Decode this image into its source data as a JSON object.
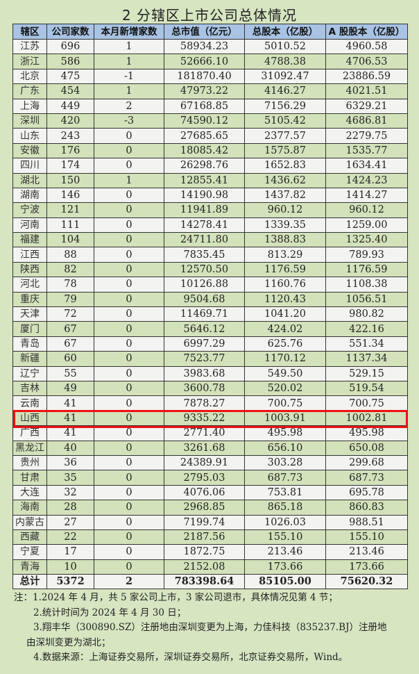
{
  "title": "2  分辖区上市公司总体情况",
  "table": {
    "headers": [
      "辖区",
      "公司家数",
      "本月新增家数",
      "总市值（亿元）",
      "总股本（亿股）",
      "A 股股本（亿股）"
    ],
    "rows": [
      [
        "江苏",
        "696",
        "1",
        "58934.23",
        "5010.52",
        "4960.58"
      ],
      [
        "浙江",
        "586",
        "1",
        "52666.10",
        "4788.38",
        "4706.53"
      ],
      [
        "北京",
        "475",
        "-1",
        "181870.40",
        "31092.47",
        "23886.59"
      ],
      [
        "广东",
        "454",
        "1",
        "47973.22",
        "4146.27",
        "4021.51"
      ],
      [
        "上海",
        "449",
        "2",
        "67168.85",
        "7156.29",
        "6329.21"
      ],
      [
        "深圳",
        "420",
        "-3",
        "74590.12",
        "5105.42",
        "4686.81"
      ],
      [
        "山东",
        "243",
        "0",
        "27685.65",
        "2377.57",
        "2279.75"
      ],
      [
        "安徽",
        "176",
        "0",
        "18085.42",
        "1575.87",
        "1535.77"
      ],
      [
        "四川",
        "174",
        "0",
        "26298.76",
        "1652.83",
        "1634.41"
      ],
      [
        "湖北",
        "150",
        "1",
        "12855.41",
        "1436.62",
        "1424.23"
      ],
      [
        "湖南",
        "146",
        "0",
        "14190.98",
        "1437.82",
        "1414.27"
      ],
      [
        "宁波",
        "121",
        "0",
        "11941.89",
        "960.12",
        "960.12"
      ],
      [
        "河南",
        "111",
        "0",
        "14278.41",
        "1339.35",
        "1259.00"
      ],
      [
        "福建",
        "104",
        "0",
        "24711.80",
        "1388.83",
        "1325.40"
      ],
      [
        "江西",
        "88",
        "0",
        "7835.45",
        "813.29",
        "789.93"
      ],
      [
        "陕西",
        "82",
        "0",
        "12570.50",
        "1176.59",
        "1176.59"
      ],
      [
        "河北",
        "78",
        "0",
        "10126.88",
        "1160.76",
        "1108.38"
      ],
      [
        "重庆",
        "79",
        "0",
        "9504.68",
        "1120.43",
        "1056.51"
      ],
      [
        "天津",
        "72",
        "0",
        "11469.71",
        "1041.20",
        "980.82"
      ],
      [
        "厦门",
        "67",
        "0",
        "5646.12",
        "424.02",
        "422.16"
      ],
      [
        "青岛",
        "67",
        "0",
        "6997.29",
        "625.76",
        "551.34"
      ],
      [
        "新疆",
        "60",
        "0",
        "7523.77",
        "1170.12",
        "1137.34"
      ],
      [
        "辽宁",
        "55",
        "0",
        "3983.68",
        "549.50",
        "529.15"
      ],
      [
        "吉林",
        "49",
        "0",
        "3600.78",
        "520.02",
        "519.54"
      ],
      [
        "云南",
        "41",
        "0",
        "7878.27",
        "700.75",
        "700.75"
      ],
      [
        "山西",
        "41",
        "0",
        "9335.22",
        "1003.91",
        "1002.81"
      ],
      [
        "广西",
        "41",
        "0",
        "2771.40",
        "495.98",
        "495.98"
      ],
      [
        "黑龙江",
        "40",
        "0",
        "3261.68",
        "656.10",
        "650.08"
      ],
      [
        "贵州",
        "36",
        "0",
        "24389.91",
        "303.28",
        "299.68"
      ],
      [
        "甘肃",
        "35",
        "0",
        "2795.03",
        "687.73",
        "687.73"
      ],
      [
        "大连",
        "32",
        "0",
        "4076.06",
        "753.81",
        "695.78"
      ],
      [
        "海南",
        "28",
        "0",
        "2968.85",
        "865.18",
        "860.83"
      ],
      [
        "内蒙古",
        "27",
        "0",
        "7199.74",
        "1026.03",
        "988.51"
      ],
      [
        "西藏",
        "22",
        "0",
        "2187.56",
        "155.10",
        "155.10"
      ],
      [
        "宁夏",
        "17",
        "0",
        "1872.75",
        "213.46",
        "213.46"
      ],
      [
        "青海",
        "10",
        "0",
        "2152.08",
        "173.66",
        "173.66"
      ]
    ],
    "total": [
      "总计",
      "5372",
      "2",
      "783398.64",
      "85105.00",
      "75620.32"
    ],
    "highlighted_row": "山西",
    "highlight_color": "#ee1111"
  },
  "notes": [
    "注：1.2024 年 4 月，共 5 家公司上市，3 家公司退市，具体情况见第 4 节；",
    "2.统计时间为 2024 年 4 月 30 日；",
    "3.翔丰华（300890.SZ）注册地由深圳变更为上海，力佳科技（835237.BJ）注册地",
    "由深圳变更为湖北；",
    "4.数据来源：上海证券交易所，深圳证券交易所，北京证券交易所，Wind。"
  ]
}
